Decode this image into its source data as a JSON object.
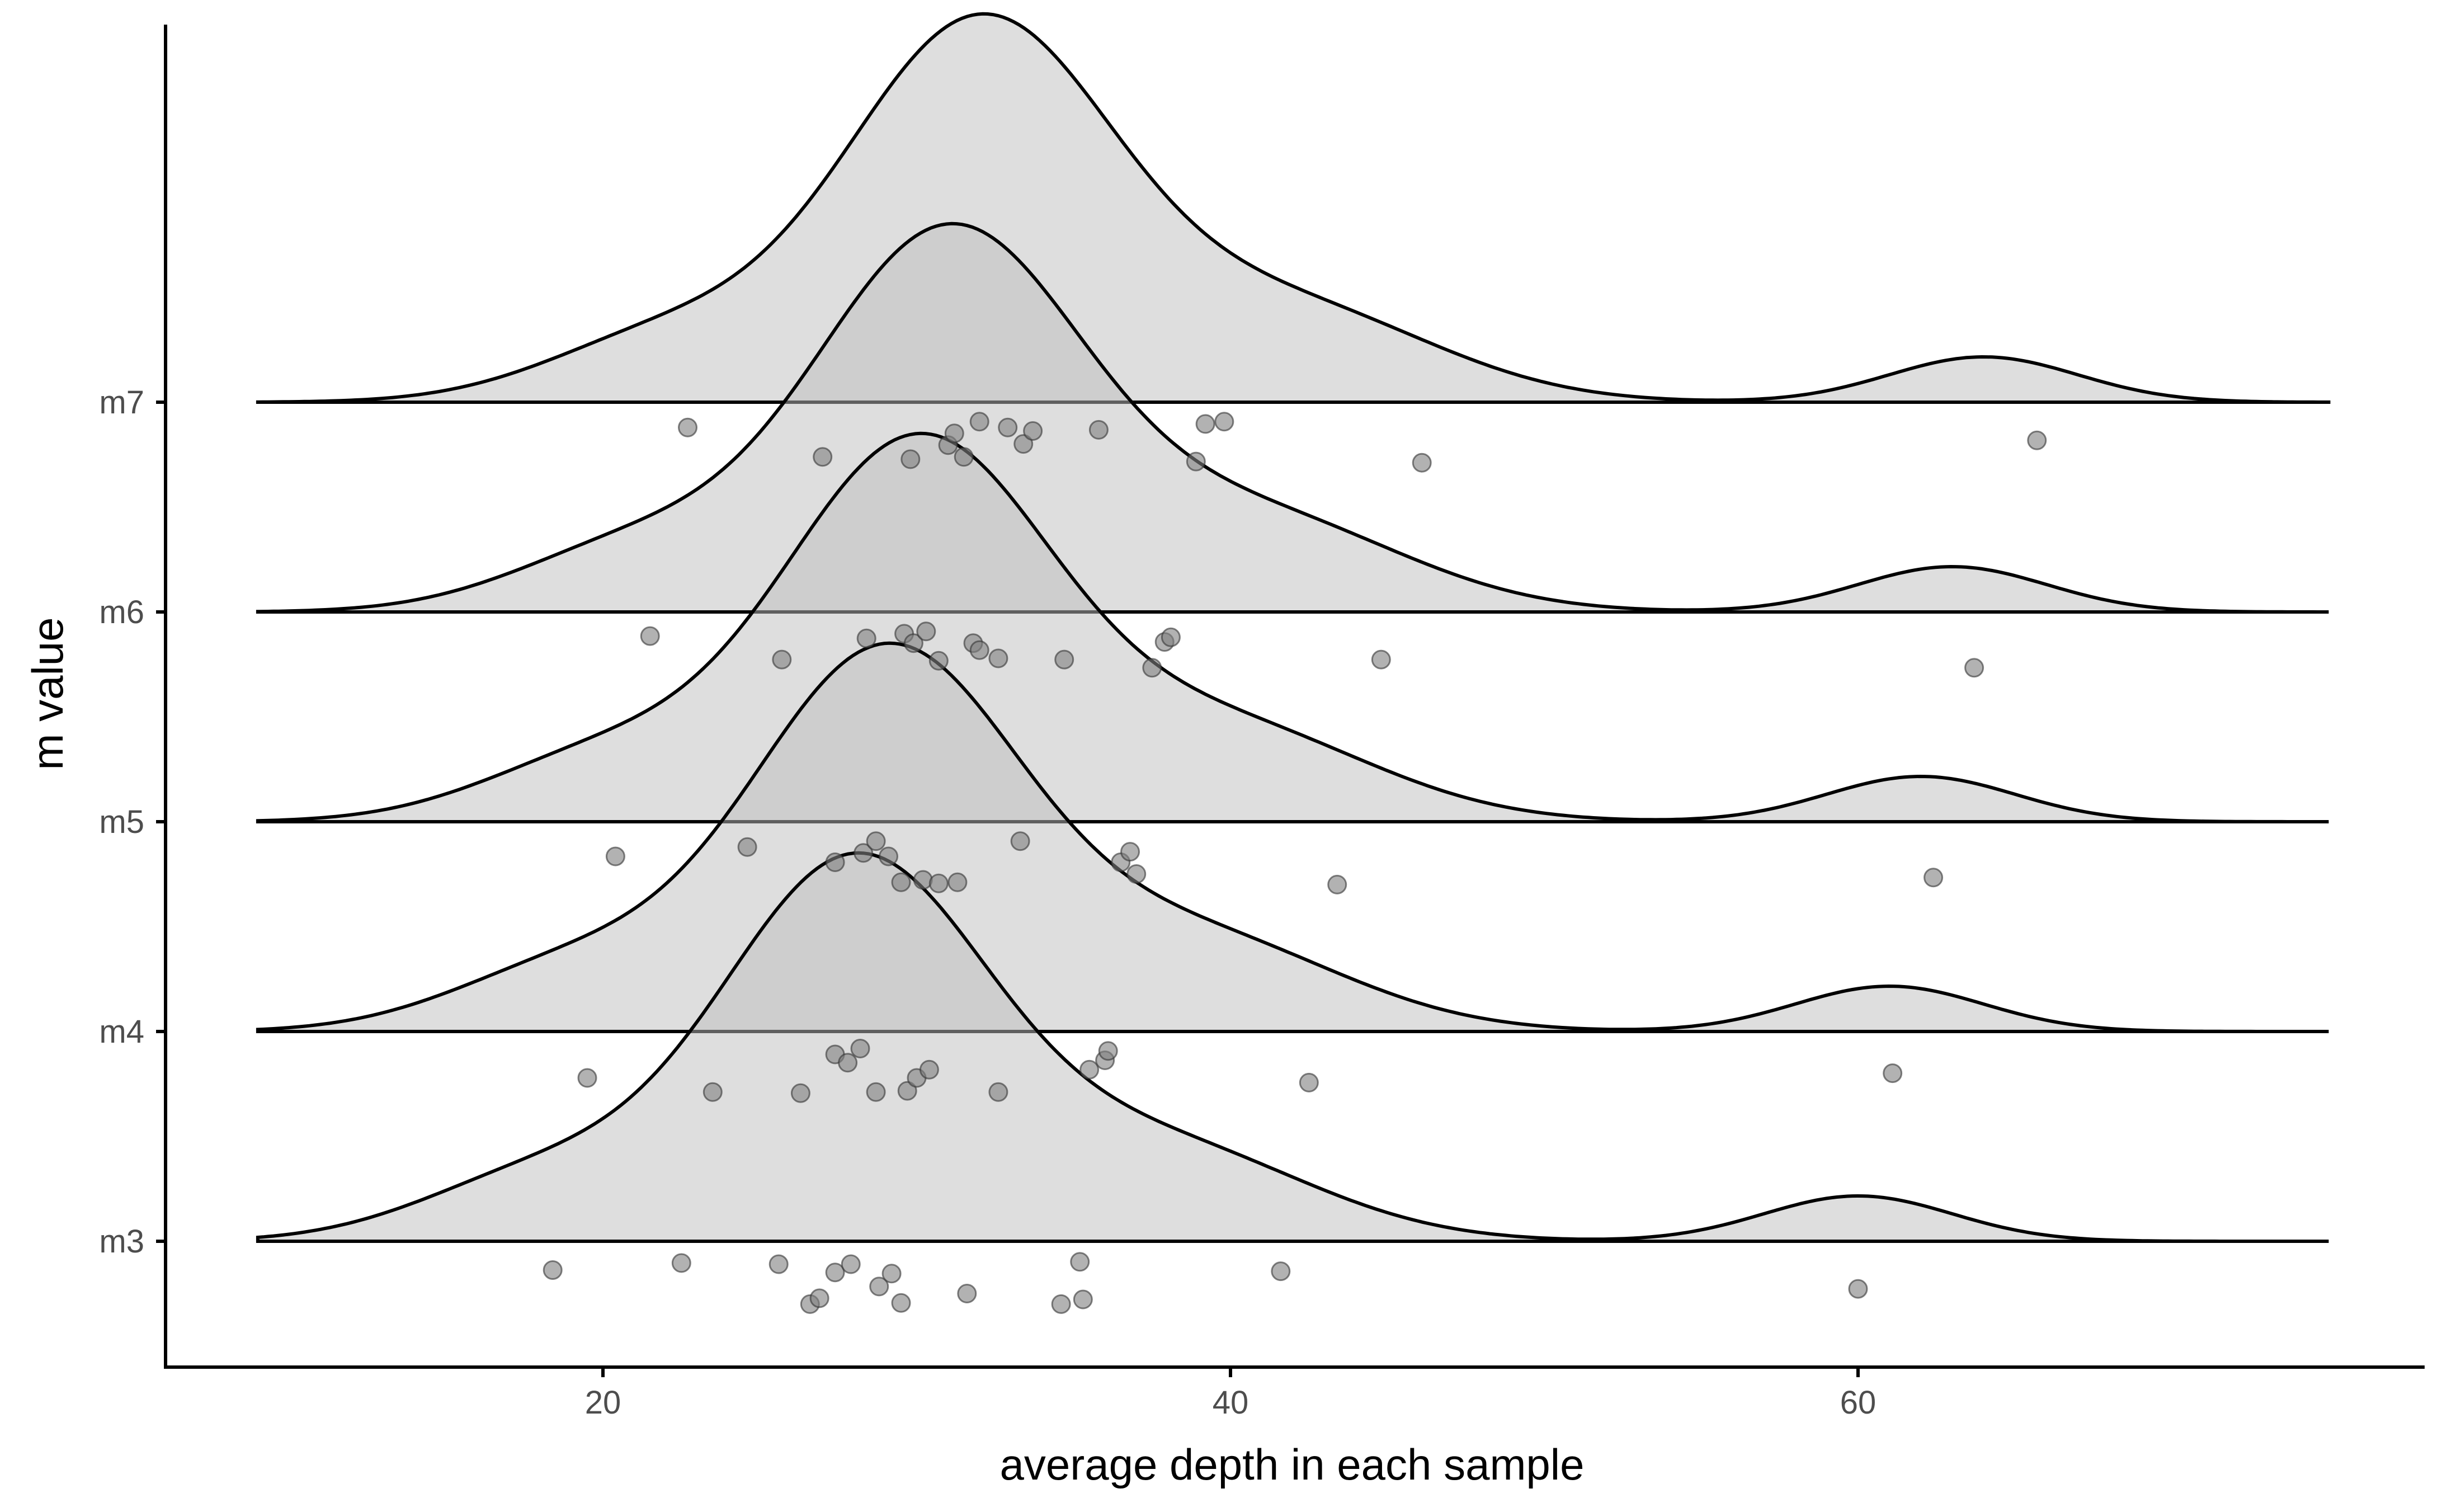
{
  "chart_data": {
    "type": "ridgeline",
    "title": "",
    "xlabel": "average depth in each sample",
    "ylabel": "m value",
    "xlim": [
      6,
      75
    ],
    "x_ticks": [
      20,
      40,
      60
    ],
    "x_tick_labels": [
      "20",
      "40",
      "60"
    ],
    "categories": [
      "m3",
      "m4",
      "m5",
      "m6",
      "m7"
    ],
    "series": [
      {
        "name": "m3",
        "peak": 28,
        "points": [
          {
            "x": 18.4,
            "jitter": 0.15
          },
          {
            "x": 22.5,
            "jitter": 0.09
          },
          {
            "x": 25.6,
            "jitter": 0.1
          },
          {
            "x": 26.6,
            "jitter": 0.44
          },
          {
            "x": 26.9,
            "jitter": 0.39
          },
          {
            "x": 27.4,
            "jitter": 0.17
          },
          {
            "x": 27.9,
            "jitter": 0.1
          },
          {
            "x": 28.8,
            "jitter": 0.29
          },
          {
            "x": 29.2,
            "jitter": 0.18
          },
          {
            "x": 29.5,
            "jitter": 0.43
          },
          {
            "x": 31.6,
            "jitter": 0.35
          },
          {
            "x": 34.6,
            "jitter": 0.44
          },
          {
            "x": 35.2,
            "jitter": 0.08
          },
          {
            "x": 35.3,
            "jitter": 0.4
          },
          {
            "x": 41.6,
            "jitter": 0.16
          },
          {
            "x": 60.0,
            "jitter": 0.31
          }
        ]
      },
      {
        "name": "m4",
        "peak": 29,
        "points": [
          {
            "x": 19.5,
            "jitter": 0.3
          },
          {
            "x": 23.5,
            "jitter": 0.42
          },
          {
            "x": 26.3,
            "jitter": 0.43
          },
          {
            "x": 27.4,
            "jitter": 0.1
          },
          {
            "x": 27.8,
            "jitter": 0.17
          },
          {
            "x": 28.2,
            "jitter": 0.05
          },
          {
            "x": 28.7,
            "jitter": 0.42
          },
          {
            "x": 29.7,
            "jitter": 0.41
          },
          {
            "x": 30.0,
            "jitter": 0.3
          },
          {
            "x": 30.4,
            "jitter": 0.23
          },
          {
            "x": 32.6,
            "jitter": 0.42
          },
          {
            "x": 35.5,
            "jitter": 0.23
          },
          {
            "x": 36.0,
            "jitter": 0.15
          },
          {
            "x": 36.1,
            "jitter": 0.07
          },
          {
            "x": 42.5,
            "jitter": 0.34
          },
          {
            "x": 61.1,
            "jitter": 0.26
          }
        ]
      },
      {
        "name": "m5",
        "peak": 30,
        "points": [
          {
            "x": 20.4,
            "jitter": 0.2
          },
          {
            "x": 24.6,
            "jitter": 0.12
          },
          {
            "x": 27.4,
            "jitter": 0.25
          },
          {
            "x": 28.3,
            "jitter": 0.17
          },
          {
            "x": 28.7,
            "jitter": 0.07
          },
          {
            "x": 29.1,
            "jitter": 0.2
          },
          {
            "x": 29.5,
            "jitter": 0.42
          },
          {
            "x": 30.2,
            "jitter": 0.4
          },
          {
            "x": 30.7,
            "jitter": 0.43
          },
          {
            "x": 31.3,
            "jitter": 0.42
          },
          {
            "x": 33.3,
            "jitter": 0.07
          },
          {
            "x": 36.5,
            "jitter": 0.25
          },
          {
            "x": 36.8,
            "jitter": 0.16
          },
          {
            "x": 37.0,
            "jitter": 0.35
          },
          {
            "x": 43.4,
            "jitter": 0.44
          },
          {
            "x": 62.4,
            "jitter": 0.38
          }
        ]
      },
      {
        "name": "m6",
        "peak": 31,
        "points": [
          {
            "x": 21.5,
            "jitter": 0.11
          },
          {
            "x": 25.7,
            "jitter": 0.31
          },
          {
            "x": 28.4,
            "jitter": 0.13
          },
          {
            "x": 29.6,
            "jitter": 0.09
          },
          {
            "x": 29.9,
            "jitter": 0.17
          },
          {
            "x": 30.3,
            "jitter": 0.07
          },
          {
            "x": 30.7,
            "jitter": 0.32
          },
          {
            "x": 31.8,
            "jitter": 0.17
          },
          {
            "x": 32.0,
            "jitter": 0.23
          },
          {
            "x": 32.6,
            "jitter": 0.3
          },
          {
            "x": 34.7,
            "jitter": 0.31
          },
          {
            "x": 37.5,
            "jitter": 0.38
          },
          {
            "x": 37.9,
            "jitter": 0.16
          },
          {
            "x": 38.1,
            "jitter": 0.12
          },
          {
            "x": 44.8,
            "jitter": 0.31
          },
          {
            "x": 63.7,
            "jitter": 0.38
          }
        ]
      },
      {
        "name": "m7",
        "peak": 32,
        "points": [
          {
            "x": 22.7,
            "jitter": 0.12
          },
          {
            "x": 27.0,
            "jitter": 0.37
          },
          {
            "x": 29.8,
            "jitter": 0.39
          },
          {
            "x": 31.0,
            "jitter": 0.27
          },
          {
            "x": 31.2,
            "jitter": 0.17
          },
          {
            "x": 31.5,
            "jitter": 0.37
          },
          {
            "x": 32.0,
            "jitter": 0.07
          },
          {
            "x": 32.9,
            "jitter": 0.12
          },
          {
            "x": 33.4,
            "jitter": 0.26
          },
          {
            "x": 33.7,
            "jitter": 0.15
          },
          {
            "x": 35.8,
            "jitter": 0.14
          },
          {
            "x": 38.9,
            "jitter": 0.41
          },
          {
            "x": 39.2,
            "jitter": 0.09
          },
          {
            "x": 39.8,
            "jitter": 0.07
          },
          {
            "x": 46.1,
            "jitter": 0.42
          },
          {
            "x": 65.7,
            "jitter": 0.23
          }
        ]
      }
    ]
  }
}
